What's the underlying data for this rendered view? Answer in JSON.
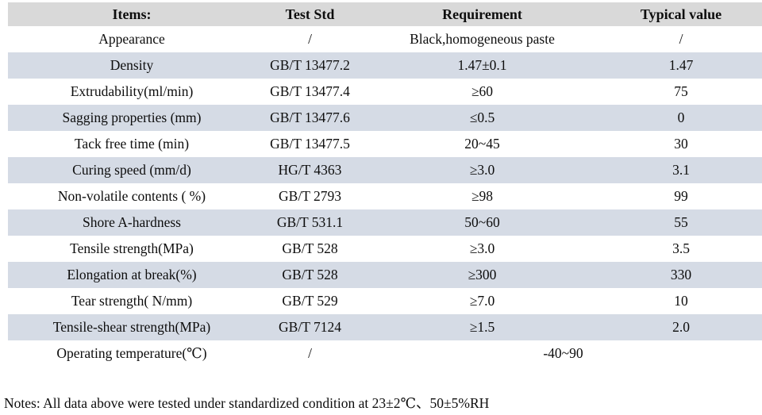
{
  "colors": {
    "header_bg": "#d9d9d9",
    "row_alt_bg": "#d5dbe5"
  },
  "table": {
    "headers": [
      "Items:",
      "Test Std",
      "Requirement",
      "Typical value"
    ],
    "rows": [
      {
        "item": "Appearance",
        "std": "/",
        "req": "Black,homogeneous paste",
        "typ": "/"
      },
      {
        "item": "Density",
        "std": "GB/T 13477.2",
        "req": "1.47±0.1",
        "typ": "1.47"
      },
      {
        "item": "Extrudability(ml/min)",
        "std": "GB/T 13477.4",
        "req": "≥60",
        "typ": "75"
      },
      {
        "item": "Sagging properties (mm)",
        "std": "GB/T 13477.6",
        "req": "≤0.5",
        "typ": "0"
      },
      {
        "item": "Tack free time (min)",
        "std": "GB/T 13477.5",
        "req": "20~45",
        "typ": "30"
      },
      {
        "item": "Curing speed (mm/d)",
        "std": "HG/T 4363",
        "req": "≥3.0",
        "typ": "3.1"
      },
      {
        "item": "Non-volatile contents ( %)",
        "std": "GB/T 2793",
        "req": "≥98",
        "typ": "99"
      },
      {
        "item": "Shore A-hardness",
        "std": "GB/T 531.1",
        "req": "50~60",
        "typ": "55"
      },
      {
        "item": "Tensile strength(MPa)",
        "std": "GB/T 528",
        "req": "≥3.0",
        "typ": "3.5"
      },
      {
        "item": "Elongation at break(%)",
        "std": "GB/T 528",
        "req": "≥300",
        "typ": "330"
      },
      {
        "item": "Tear strength( N/mm)",
        "std": "GB/T 529",
        "req": "≥7.0",
        "typ": "10"
      },
      {
        "item": "Tensile-shear strength(MPa)",
        "std": "GB/T 7124",
        "req": "≥1.5",
        "typ": "2.0"
      },
      {
        "item": "Operating temperature(℃)",
        "std": "/",
        "req_span": "-40~90"
      }
    ]
  },
  "notes": "Notes: All data above were tested under standardized condition at 23±2℃、50±5%RH"
}
